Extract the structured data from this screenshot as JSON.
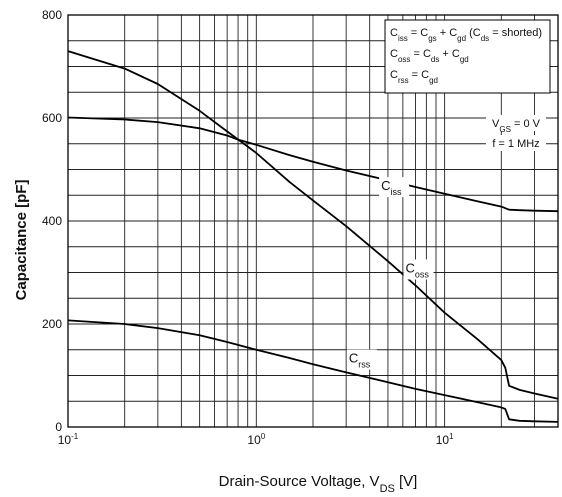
{
  "chart_data": {
    "type": "line",
    "xscale": "log",
    "xlim": [
      0.1,
      40
    ],
    "ylim": [
      0,
      800
    ],
    "xticks": [
      "10",
      "10",
      "10"
    ],
    "xtick_exponents": [
      "-1",
      "0",
      "1"
    ],
    "xtick_values": [
      0.1,
      1,
      10
    ],
    "yticks": [
      "0",
      "200",
      "400",
      "600",
      "800"
    ],
    "ytick_values": [
      0,
      200,
      400,
      600,
      800
    ],
    "xlabel": "Drain-Source Voltage, V",
    "xlabel_sub": "DS",
    "xlabel_unit": " [V]",
    "ylabel": "Capacitance [pF]",
    "grid": true,
    "legend_position": "top-right",
    "legend_lines": [
      [
        {
          "t": "C",
          "s": ""
        },
        {
          "t": "iss",
          "s": "sub"
        },
        {
          "t": " = C",
          "s": ""
        },
        {
          "t": "gs",
          "s": "sub"
        },
        {
          "t": " + C",
          "s": ""
        },
        {
          "t": "gd",
          "s": "sub"
        },
        {
          "t": " (C",
          "s": ""
        },
        {
          "t": "ds",
          "s": "sub"
        },
        {
          "t": " = shorted)",
          "s": ""
        }
      ],
      [
        {
          "t": "C",
          "s": ""
        },
        {
          "t": "oss",
          "s": "sub"
        },
        {
          "t": " = C",
          "s": ""
        },
        {
          "t": "ds",
          "s": "sub"
        },
        {
          "t": " + C",
          "s": ""
        },
        {
          "t": "gd",
          "s": "sub"
        }
      ],
      [
        {
          "t": "C",
          "s": ""
        },
        {
          "t": "rss",
          "s": "sub"
        },
        {
          "t": " = C",
          "s": ""
        },
        {
          "t": "gd",
          "s": "sub"
        }
      ]
    ],
    "conditions": [
      [
        {
          "t": "V",
          "s": ""
        },
        {
          "t": "GS",
          "s": "sub"
        },
        {
          "t": " = 0 V",
          "s": ""
        }
      ],
      [
        {
          "t": "f = 1 MHz",
          "s": ""
        }
      ]
    ],
    "series": [
      {
        "name": "C",
        "name_sub": "iss",
        "label_at": [
          4.6,
          460
        ],
        "x": [
          0.1,
          0.2,
          0.3,
          0.5,
          0.7,
          0.8,
          1,
          1.5,
          2,
          3,
          5,
          7,
          10,
          15,
          20,
          22,
          25,
          30,
          40
        ],
        "y": [
          601,
          597,
          592,
          580,
          566,
          558,
          548,
          528,
          515,
          498,
          479,
          466,
          453,
          438,
          428,
          422,
          421,
          420,
          419
        ]
      },
      {
        "name": "C",
        "name_sub": "oss",
        "label_at": [
          6.2,
          300
        ],
        "x": [
          0.1,
          0.15,
          0.2,
          0.3,
          0.5,
          0.7,
          1,
          1.5,
          2,
          3,
          5,
          7,
          10,
          15,
          20,
          21,
          22,
          25,
          30,
          40
        ],
        "y": [
          730,
          710,
          696,
          666,
          614,
          574,
          532,
          476,
          440,
          390,
          322,
          275,
          222,
          170,
          130,
          115,
          80,
          72,
          65,
          55
        ]
      },
      {
        "name": "C",
        "name_sub": "rss",
        "label_at": [
          3.1,
          125
        ],
        "x": [
          0.1,
          0.2,
          0.3,
          0.5,
          0.7,
          1,
          1.5,
          2,
          3,
          5,
          7,
          10,
          15,
          20,
          21,
          22,
          25,
          30,
          40
        ],
        "y": [
          207,
          200,
          192,
          178,
          165,
          150,
          134,
          122,
          106,
          87,
          74,
          62,
          48,
          38,
          35,
          15,
          12,
          11,
          10
        ]
      }
    ]
  }
}
